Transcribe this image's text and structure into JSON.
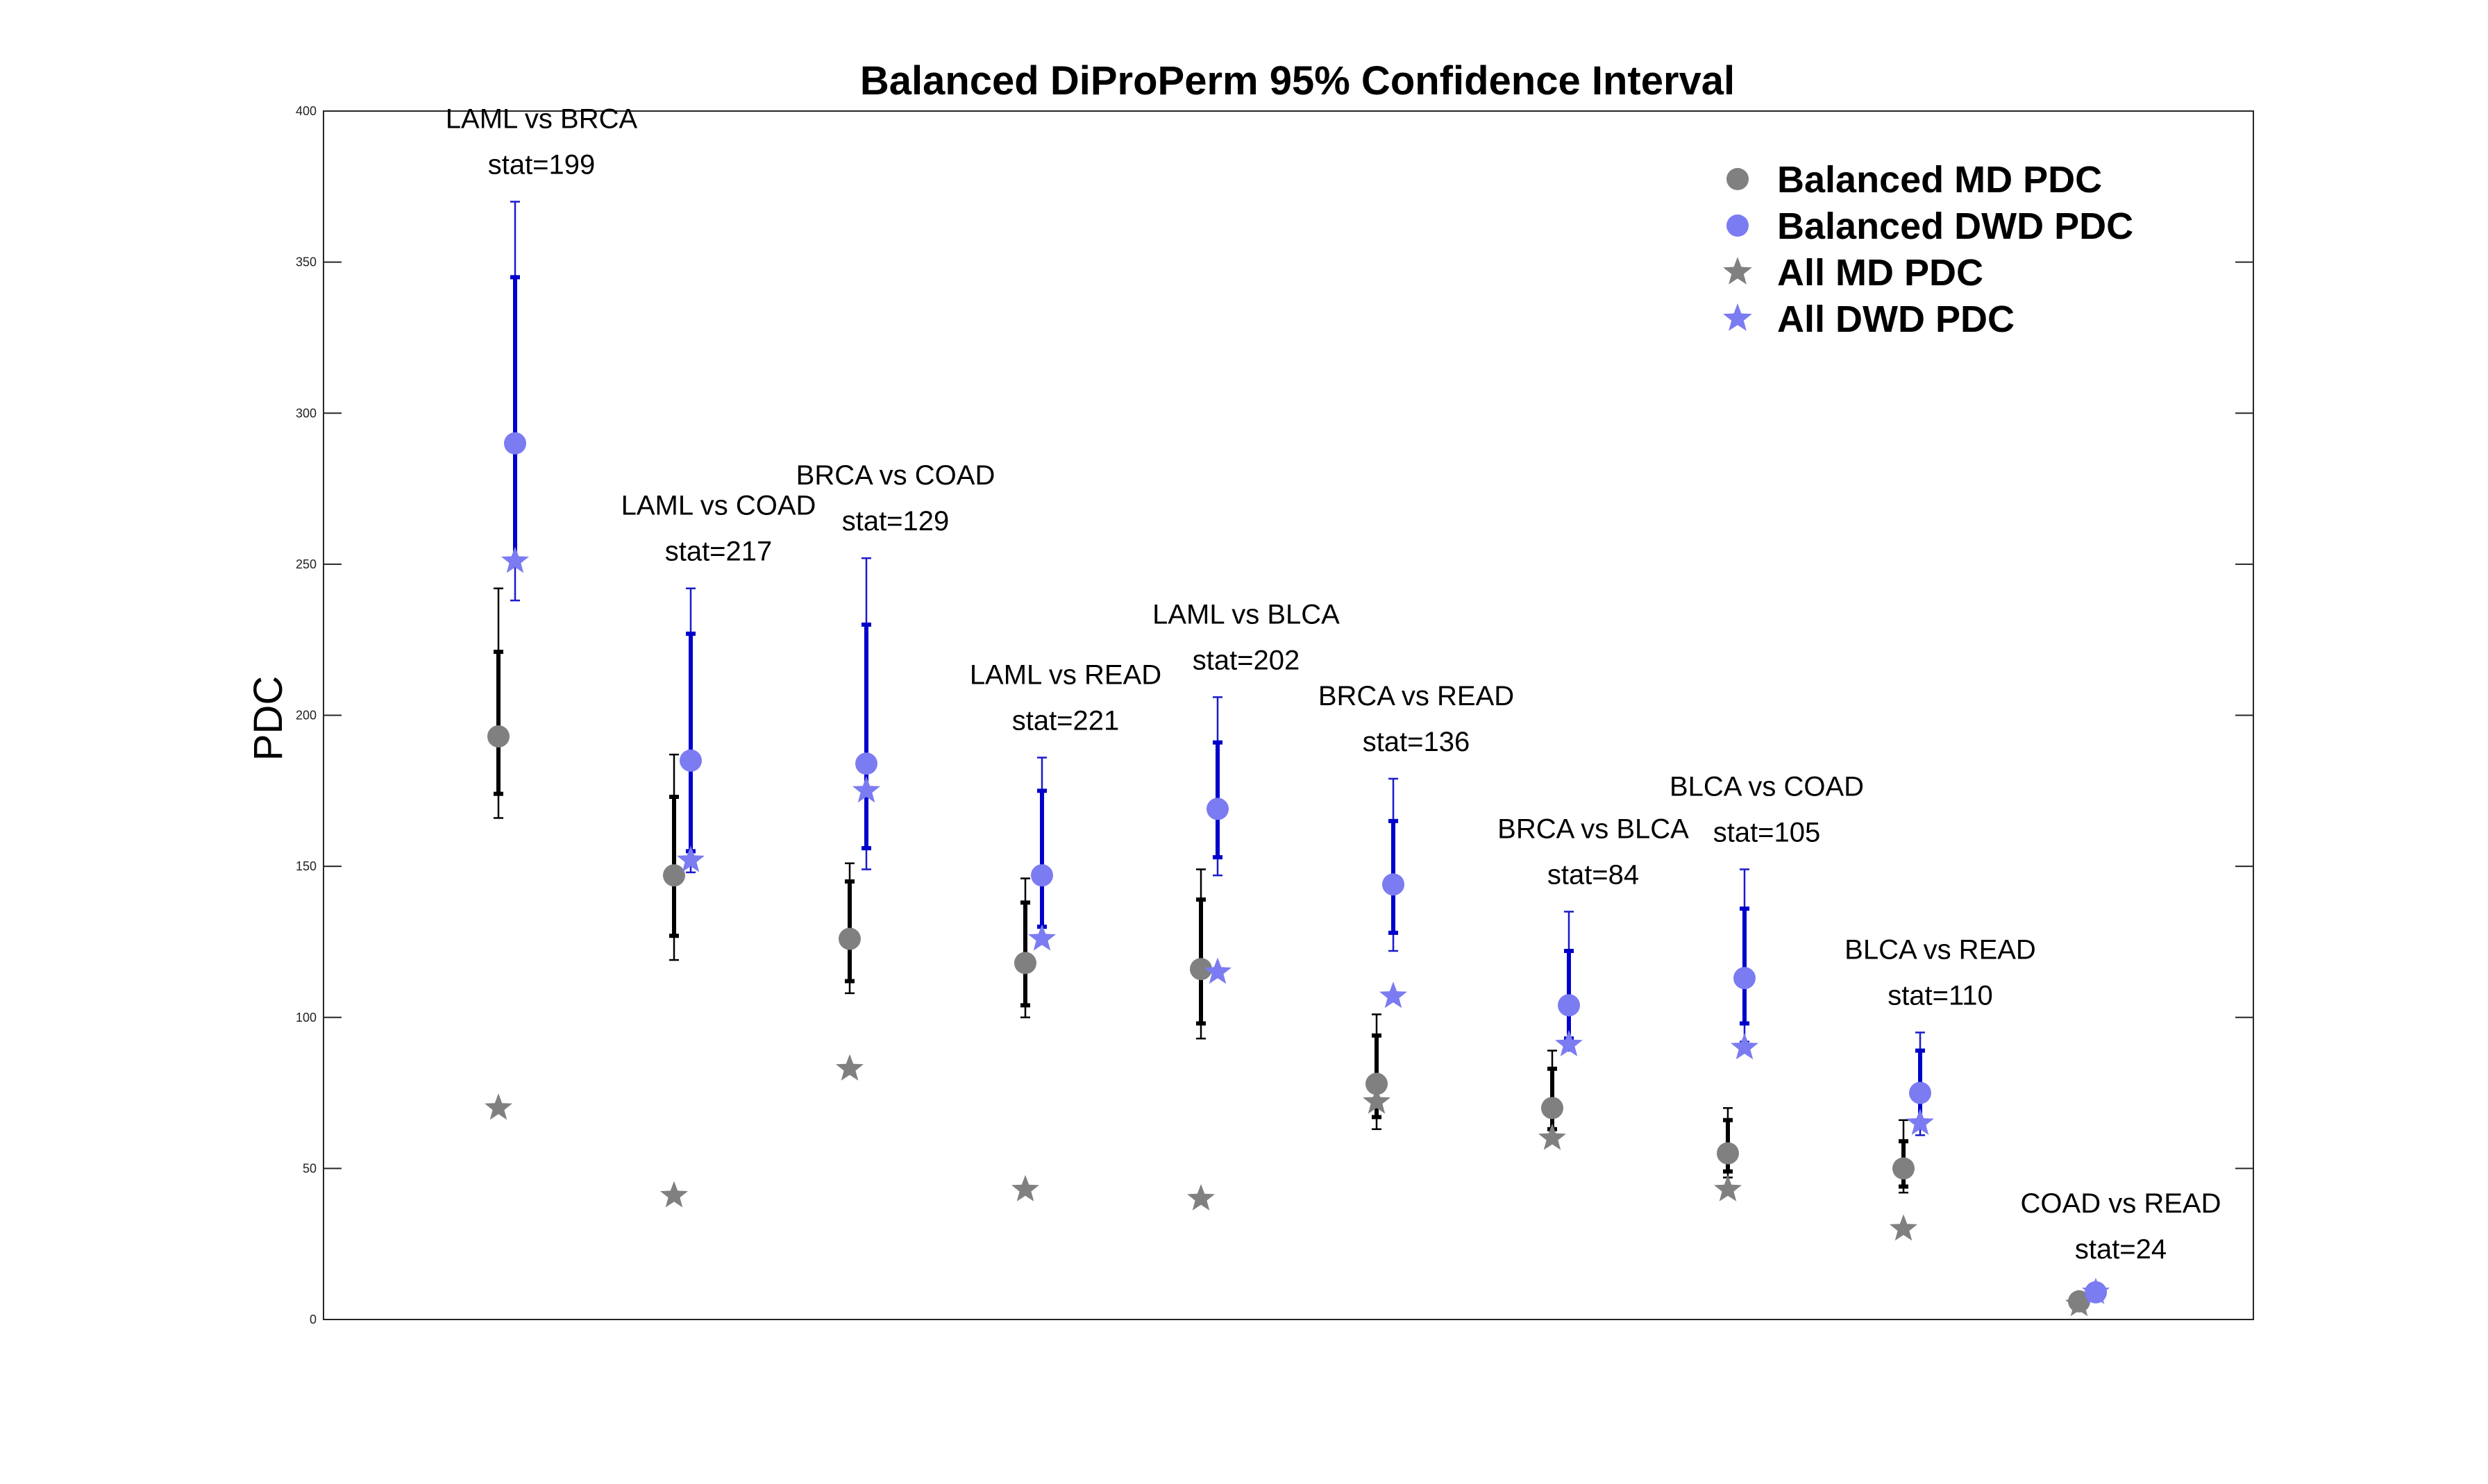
{
  "chart_data": {
    "type": "scatter",
    "title": "Balanced DiProPerm 95% Confidence Interval",
    "xlabel": "",
    "ylabel": "PDC",
    "ylim": [
      0,
      400
    ],
    "yticks": [
      0,
      50,
      100,
      150,
      200,
      250,
      300,
      350,
      400
    ],
    "grid": false,
    "legend_position": "top-right",
    "colors": {
      "md": "#808080",
      "dwd": "#7b7bf2",
      "md_bar": "#000000",
      "dwd_bar": "#0000cc"
    },
    "legend": [
      {
        "key": "md_circle",
        "label": "Balanced MD PDC"
      },
      {
        "key": "dwd_circle",
        "label": "Balanced DWD PDC"
      },
      {
        "key": "md_star",
        "label": "All MD PDC"
      },
      {
        "key": "dwd_star",
        "label": "All DWD PDC"
      }
    ],
    "groups": [
      {
        "pair": "LAML vs BRCA",
        "stat": "stat=199",
        "md": {
          "balanced": 193,
          "all": 70,
          "ci50": [
            174,
            221
          ],
          "ci95": [
            166,
            242
          ]
        },
        "dwd": {
          "balanced": 290,
          "all": 251,
          "ci50": [
            251,
            345
          ],
          "ci95": [
            238,
            370
          ]
        }
      },
      {
        "pair": "LAML vs COAD",
        "stat": "stat=217",
        "md": {
          "balanced": 147,
          "all": 41,
          "ci50": [
            127,
            173
          ],
          "ci95": [
            119,
            187
          ]
        },
        "dwd": {
          "balanced": 185,
          "all": 152,
          "ci50": [
            155,
            227
          ],
          "ci95": [
            148,
            242
          ]
        }
      },
      {
        "pair": "BRCA vs COAD",
        "stat": "stat=129",
        "md": {
          "balanced": 126,
          "all": 83,
          "ci50": [
            112,
            145
          ],
          "ci95": [
            108,
            151
          ]
        },
        "dwd": {
          "balanced": 184,
          "all": 175,
          "ci50": [
            156,
            230
          ],
          "ci95": [
            149,
            252
          ]
        }
      },
      {
        "pair": "LAML vs READ",
        "stat": "stat=221",
        "md": {
          "balanced": 118,
          "all": 43,
          "ci50": [
            104,
            138
          ],
          "ci95": [
            100,
            146
          ]
        },
        "dwd": {
          "balanced": 147,
          "all": 126,
          "ci50": [
            130,
            175
          ],
          "ci95": [
            125,
            186
          ]
        }
      },
      {
        "pair": "LAML vs BLCA",
        "stat": "stat=202",
        "md": {
          "balanced": 116,
          "all": 40,
          "ci50": [
            98,
            139
          ],
          "ci95": [
            93,
            149
          ]
        },
        "dwd": {
          "balanced": 169,
          "all": 115,
          "ci50": [
            153,
            191
          ],
          "ci95": [
            147,
            206
          ]
        }
      },
      {
        "pair": "BRCA vs READ",
        "stat": "stat=136",
        "md": {
          "balanced": 78,
          "all": 72,
          "ci50": [
            67,
            94
          ],
          "ci95": [
            63,
            101
          ]
        },
        "dwd": {
          "balanced": 144,
          "all": 107,
          "ci50": [
            128,
            165
          ],
          "ci95": [
            122,
            179
          ]
        }
      },
      {
        "pair": "BRCA vs BLCA",
        "stat": "stat=84",
        "md": {
          "balanced": 70,
          "all": 60,
          "ci50": [
            63,
            83
          ],
          "ci95": [
            60,
            89
          ]
        },
        "dwd": {
          "balanced": 104,
          "all": 91,
          "ci50": [
            93,
            122
          ],
          "ci95": [
            89,
            135
          ]
        }
      },
      {
        "pair": "BLCA vs COAD",
        "stat": "stat=105",
        "md": {
          "balanced": 55,
          "all": 43,
          "ci50": [
            49,
            66
          ],
          "ci95": [
            47,
            70
          ]
        },
        "dwd": {
          "balanced": 113,
          "all": 90,
          "ci50": [
            98,
            136
          ],
          "ci95": [
            92,
            149
          ]
        }
      },
      {
        "pair": "BLCA vs READ",
        "stat": "stat=110",
        "md": {
          "balanced": 50,
          "all": 30,
          "ci50": [
            44,
            59
          ],
          "ci95": [
            42,
            66
          ]
        },
        "dwd": {
          "balanced": 75,
          "all": 65,
          "ci50": [
            65,
            89
          ],
          "ci95": [
            61,
            95
          ]
        }
      },
      {
        "pair": "COAD vs READ",
        "stat": "stat=24",
        "md": {
          "balanced": 6,
          "all": 5,
          "ci50": [
            5,
            7
          ],
          "ci95": [
            4,
            8
          ]
        },
        "dwd": {
          "balanced": 9,
          "all": 9,
          "ci50": [
            8,
            10
          ],
          "ci95": [
            7,
            11
          ]
        }
      }
    ]
  }
}
